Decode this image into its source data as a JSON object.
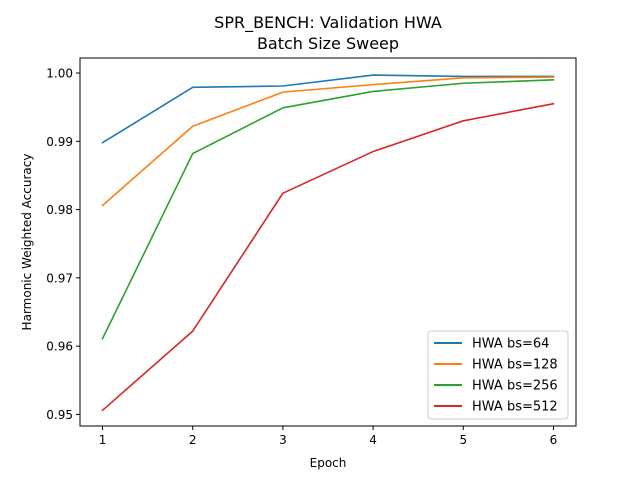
{
  "chart_data": {
    "type": "line",
    "title_line1": "SPR_BENCH: Validation HWA",
    "title_line2": "Batch Size Sweep",
    "xlabel": "Epoch",
    "ylabel": "Harmonic Weighted Accuracy",
    "x": [
      1,
      2,
      3,
      4,
      5,
      6
    ],
    "xlim": [
      0.75,
      6.25
    ],
    "ylim": [
      0.9483,
      1.0022
    ],
    "xticks": [
      1,
      2,
      3,
      4,
      5,
      6
    ],
    "yticks": [
      0.95,
      0.96,
      0.97,
      0.98,
      0.99,
      1.0
    ],
    "ytick_labels": [
      "0.95",
      "0.96",
      "0.97",
      "0.98",
      "0.99",
      "1.00"
    ],
    "grid": false,
    "legend_position": "lower-right",
    "series": [
      {
        "name": "HWA bs=64",
        "color": "#1f77b4",
        "values": [
          0.9898,
          0.9979,
          0.9981,
          0.9997,
          0.9995,
          0.9995
        ]
      },
      {
        "name": "HWA bs=128",
        "color": "#ff7f0e",
        "values": [
          0.9806,
          0.9922,
          0.9972,
          0.9983,
          0.9993,
          0.9994
        ]
      },
      {
        "name": "HWA bs=256",
        "color": "#2ca02c",
        "values": [
          0.9611,
          0.9882,
          0.9949,
          0.9973,
          0.9985,
          0.999
        ]
      },
      {
        "name": "HWA bs=512",
        "color": "#d62728",
        "values": [
          0.9506,
          0.9622,
          0.9824,
          0.9885,
          0.993,
          0.9955
        ]
      }
    ]
  }
}
